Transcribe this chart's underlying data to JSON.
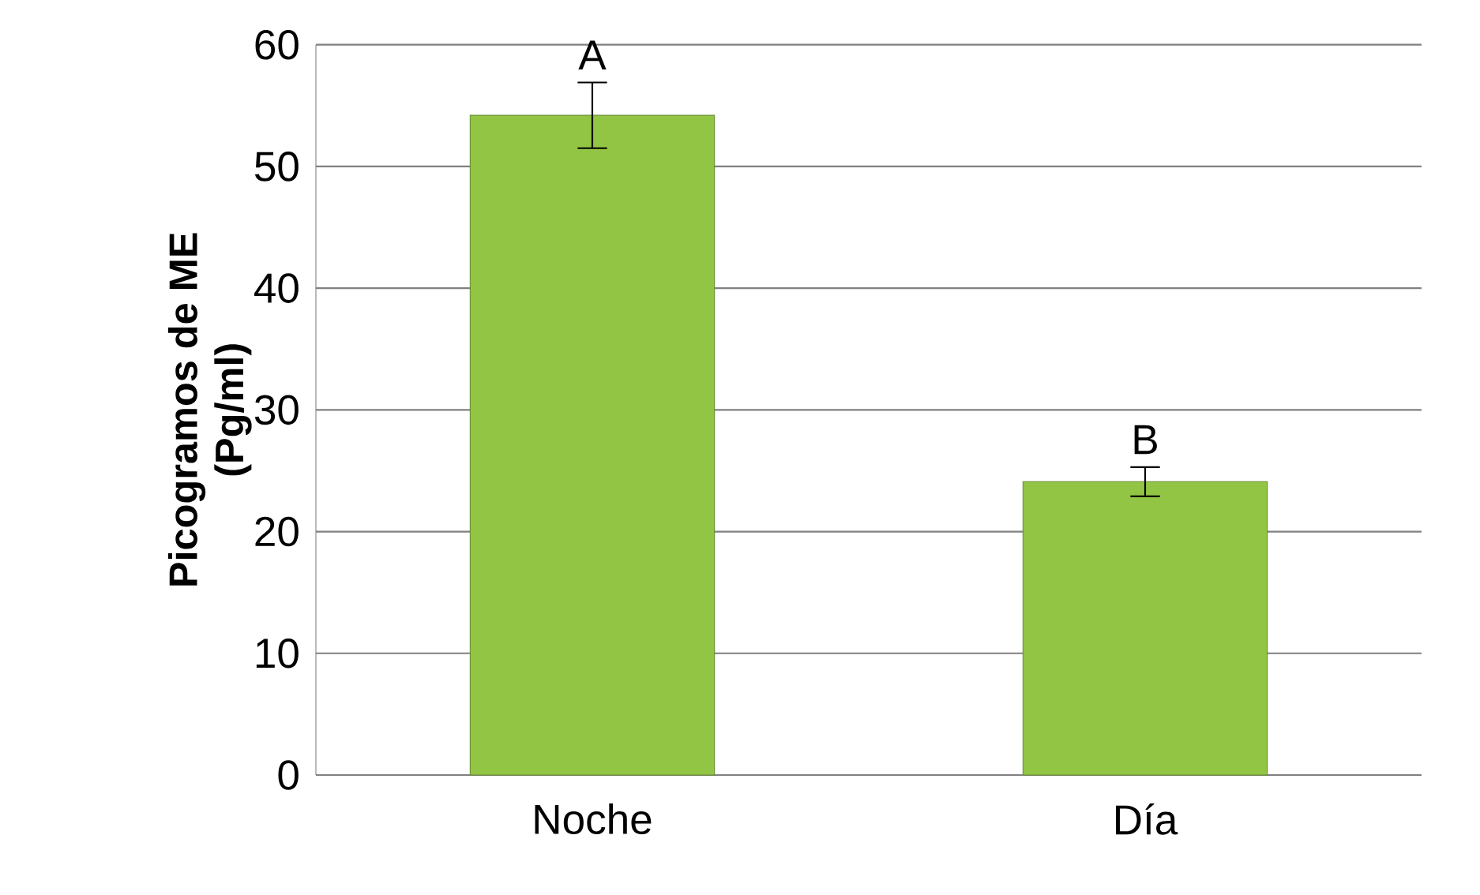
{
  "chart_data": {
    "type": "bar",
    "ylabel": "Picogramos de ME (Pg/ml)",
    "categories": [
      "Noche",
      "Día"
    ],
    "values": [
      54.2,
      24.1
    ],
    "errors": [
      2.7,
      1.2
    ],
    "color": "#92c544",
    "ylim": [
      0,
      60
    ],
    "yticks": [
      0,
      10,
      20,
      30,
      40,
      50,
      60
    ],
    "grid": "y",
    "annotations": [
      "A",
      "B"
    ]
  }
}
